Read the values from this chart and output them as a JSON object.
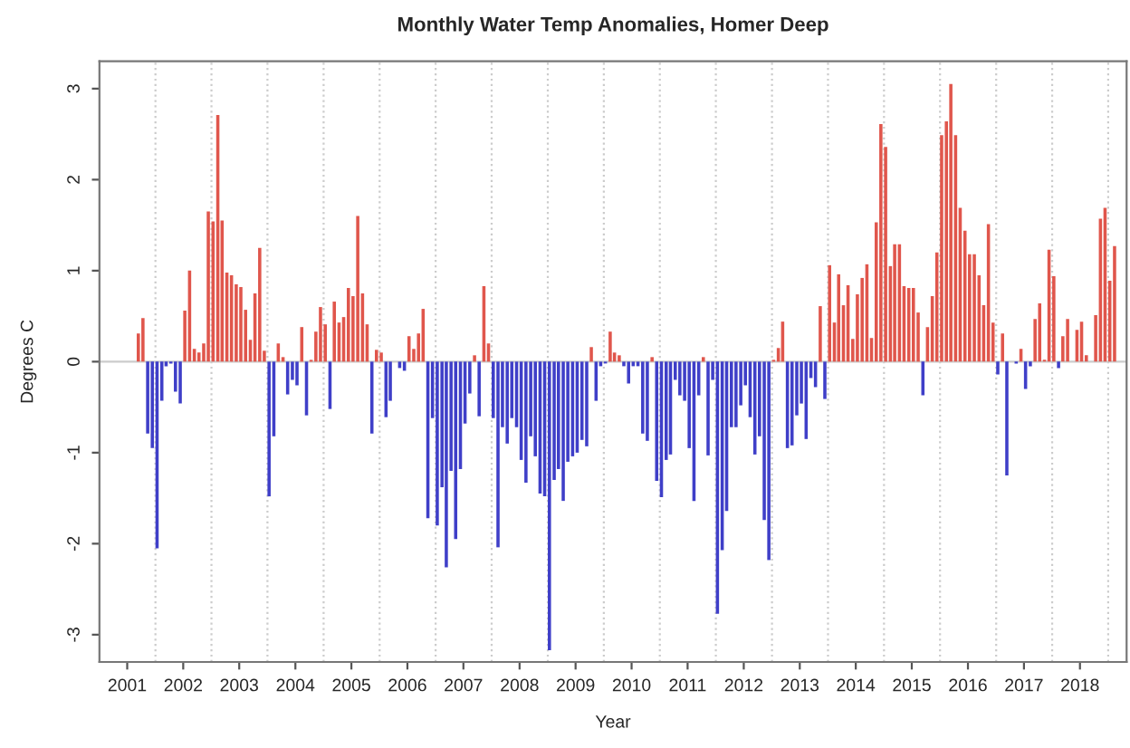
{
  "chart_data": {
    "type": "bar",
    "title": "Monthly Water Temp Anomalies, Homer Deep",
    "xlabel": "Year",
    "ylabel": "Degrees C",
    "x": [
      "2001-09",
      "2001-10",
      "2001-11",
      "2001-12",
      "2002-01",
      "2002-02",
      "2002-03",
      "2002-04",
      "2002-05",
      "2002-06",
      "2002-07",
      "2002-08",
      "2002-09",
      "2002-10",
      "2002-11",
      "2002-12",
      "2003-01",
      "2003-02",
      "2003-03",
      "2003-04",
      "2003-05",
      "2003-06",
      "2003-07",
      "2003-08",
      "2003-09",
      "2003-10",
      "2003-11",
      "2003-12",
      "2004-01",
      "2004-02",
      "2004-03",
      "2004-04",
      "2004-05",
      "2004-06",
      "2004-07",
      "2004-08",
      "2004-09",
      "2004-10",
      "2004-11",
      "2004-12",
      "2005-01",
      "2005-02",
      "2005-03",
      "2005-04",
      "2005-05",
      "2005-06",
      "2005-07",
      "2005-08",
      "2005-09",
      "2005-10",
      "2005-11",
      "2005-12",
      "2006-01",
      "2006-02",
      "2006-03",
      "2006-04",
      "2006-05",
      "2006-06",
      "2006-07",
      "2006-08",
      "2006-09",
      "2006-10",
      "2006-11",
      "2006-12",
      "2007-01",
      "2007-02",
      "2007-03",
      "2007-04",
      "2007-05",
      "2007-06",
      "2007-07",
      "2007-08",
      "2007-09",
      "2007-10",
      "2007-11",
      "2007-12",
      "2008-01",
      "2008-02",
      "2008-03",
      "2008-04",
      "2008-05",
      "2008-06",
      "2008-07",
      "2008-08",
      "2008-09",
      "2008-10",
      "2008-11",
      "2008-12",
      "2009-01",
      "2009-02",
      "2009-03",
      "2009-04",
      "2009-05",
      "2009-06",
      "2009-07",
      "2009-08",
      "2009-09",
      "2009-10",
      "2009-11",
      "2009-12",
      "2010-01",
      "2010-02",
      "2010-03",
      "2010-04",
      "2010-05",
      "2010-06",
      "2010-07",
      "2010-08",
      "2010-09",
      "2010-10",
      "2010-11",
      "2010-12",
      "2011-01",
      "2011-02",
      "2011-03",
      "2011-04",
      "2011-05",
      "2011-06",
      "2011-07",
      "2011-08",
      "2011-09",
      "2011-10",
      "2011-11",
      "2011-12",
      "2012-01",
      "2012-02",
      "2012-03",
      "2012-04",
      "2012-05",
      "2012-06",
      "2012-07",
      "2012-08",
      "2012-09",
      "2012-10",
      "2012-11",
      "2012-12",
      "2013-01",
      "2013-02",
      "2013-03",
      "2013-04",
      "2013-05",
      "2013-06",
      "2013-07",
      "2013-08",
      "2013-09",
      "2013-10",
      "2013-11",
      "2013-12",
      "2014-01",
      "2014-02",
      "2014-03",
      "2014-04",
      "2014-05",
      "2014-06",
      "2014-07",
      "2014-08",
      "2014-09",
      "2014-10",
      "2014-11",
      "2014-12",
      "2015-01",
      "2015-02",
      "2015-03",
      "2015-04",
      "2015-05",
      "2015-06",
      "2015-07",
      "2015-08",
      "2015-09",
      "2015-10",
      "2015-11",
      "2015-12",
      "2016-01",
      "2016-02",
      "2016-03",
      "2016-04",
      "2016-05",
      "2016-06",
      "2016-07",
      "2016-08",
      "2016-09",
      "2016-10",
      "2016-11",
      "2016-12",
      "2017-01",
      "2017-02",
      "2017-03",
      "2017-04",
      "2017-05",
      "2017-06",
      "2017-07",
      "2017-08",
      "2017-09",
      "2017-10",
      "2017-11",
      "2017-12",
      "2018-01",
      "2018-02",
      "2018-03",
      "2018-04",
      "2018-05",
      "2018-06",
      "2018-07",
      "2018-08",
      "2018-09",
      "2018-10",
      "2018-11",
      "2018-12",
      "2019-01",
      "2019-02"
    ],
    "series": [
      {
        "color": "#e0564c",
        "values": [
          0.31,
          0.48,
          null,
          null,
          null,
          null,
          null,
          null,
          null,
          null,
          0.56,
          1.0,
          0.14,
          0.1,
          0.2,
          1.65,
          1.54,
          2.71,
          1.55,
          0.98,
          0.95,
          0.85,
          0.82,
          0.57,
          0.24,
          0.75,
          1.25,
          0.12,
          null,
          null,
          0.2,
          0.05,
          null,
          null,
          null,
          0.38,
          null,
          0.02,
          0.33,
          0.6,
          0.41,
          null,
          0.66,
          0.43,
          0.49,
          0.81,
          0.72,
          1.6,
          0.75,
          0.41,
          null,
          0.13,
          0.1,
          null,
          null,
          0,
          null,
          null,
          0.28,
          0.14,
          0.31,
          0.58,
          null,
          null,
          null,
          null,
          null,
          null,
          null,
          null,
          null,
          null,
          0.07,
          null,
          0.83,
          0.2,
          null,
          null,
          null,
          null,
          null,
          null,
          null,
          null,
          null,
          null,
          null,
          null,
          null,
          null,
          null,
          null,
          null,
          null,
          null,
          null,
          null,
          0.16,
          null,
          null,
          null,
          0.33,
          0.1,
          0.07,
          null,
          null,
          null,
          null,
          null,
          null,
          0.05,
          null,
          null,
          null,
          null,
          null,
          null,
          null,
          null,
          null,
          null,
          0.05,
          null,
          null,
          null,
          null,
          null,
          null,
          null,
          null,
          null,
          null,
          null,
          null,
          null,
          null,
          0.02,
          0.15,
          0.44,
          null,
          null,
          null,
          null,
          null,
          null,
          null,
          0.61,
          null,
          1.06,
          0.43,
          0.96,
          0.62,
          0.84,
          0.25,
          0.74,
          0.92,
          1.07,
          0.26,
          1.53,
          2.61,
          2.36,
          1.05,
          1.29,
          1.29,
          0.83,
          0.81,
          0.81,
          0.54,
          null,
          0.38,
          0.72,
          1.2,
          2.49,
          2.64,
          3.05,
          2.49,
          1.69,
          1.44,
          1.18,
          1.18,
          0.95,
          0.62,
          1.51,
          0.43,
          null,
          0.31,
          null,
          0,
          null,
          0.14,
          null,
          null,
          0.47,
          0.64,
          0.02,
          1.23,
          0.94,
          null,
          0.28,
          0.47,
          0,
          0.35,
          0.44,
          0.07,
          0,
          0.51,
          1.57,
          1.69,
          0.89,
          1.27
        ]
      },
      {
        "color": "#3f3fc8",
        "values": [
          null,
          null,
          -0.79,
          -0.95,
          -2.05,
          -0.43,
          -0.05,
          -0.02,
          -0.33,
          -0.46,
          null,
          null,
          null,
          null,
          null,
          null,
          null,
          null,
          null,
          null,
          null,
          null,
          null,
          null,
          null,
          null,
          null,
          null,
          -1.48,
          -0.82,
          null,
          null,
          -0.36,
          -0.2,
          -0.26,
          null,
          -0.59,
          null,
          null,
          null,
          null,
          -0.52,
          null,
          null,
          null,
          null,
          null,
          null,
          null,
          null,
          -0.79,
          null,
          null,
          -0.61,
          -0.43,
          null,
          -0.07,
          -0.1,
          null,
          null,
          null,
          null,
          -1.72,
          -0.62,
          -1.8,
          -1.38,
          -2.26,
          -1.2,
          -1.95,
          -1.18,
          -0.68,
          -0.35,
          null,
          -0.6,
          null,
          null,
          -0.62,
          -2.04,
          -0.72,
          -0.9,
          -0.62,
          -0.72,
          -1.08,
          -1.33,
          -0.82,
          -1.04,
          -1.45,
          -1.48,
          -3.17,
          -1.3,
          -1.18,
          -1.53,
          -1.1,
          -1.04,
          -1.0,
          -0.86,
          -0.93,
          null,
          -0.43,
          -0.05,
          -0.02,
          null,
          null,
          null,
          -0.05,
          -0.24,
          -0.05,
          -0.05,
          -0.79,
          -0.87,
          null,
          -1.31,
          -1.49,
          -1.08,
          -1.02,
          -0.2,
          -0.37,
          -0.43,
          -0.95,
          -1.53,
          -0.37,
          null,
          -1.03,
          -0.2,
          -2.77,
          -2.07,
          -1.64,
          -0.72,
          -0.72,
          -0.48,
          -0.26,
          -0.61,
          -1.02,
          -0.82,
          -1.74,
          -2.18,
          null,
          null,
          null,
          -0.95,
          -0.92,
          -0.59,
          -0.46,
          -0.85,
          -0.18,
          -0.28,
          null,
          -0.41,
          null,
          null,
          null,
          null,
          null,
          null,
          null,
          null,
          null,
          null,
          null,
          null,
          null,
          null,
          null,
          null,
          null,
          null,
          null,
          null,
          -0.37,
          null,
          null,
          null,
          null,
          null,
          null,
          null,
          null,
          null,
          null,
          null,
          null,
          null,
          null,
          null,
          -0.14,
          null,
          -1.25,
          null,
          -0.02,
          null,
          -0.3,
          -0.05,
          null,
          null,
          null,
          null,
          null,
          -0.07,
          null,
          null,
          null,
          null,
          null,
          null,
          null,
          null,
          null,
          null,
          null,
          null
        ]
      }
    ],
    "xlim": [
      "2001-01",
      "2019-05"
    ],
    "xticks": [
      {
        "value": "2001-07",
        "label": "2001"
      },
      {
        "value": "2002-07",
        "label": "2002"
      },
      {
        "value": "2003-07",
        "label": "2003"
      },
      {
        "value": "2004-07",
        "label": "2004"
      },
      {
        "value": "2005-07",
        "label": "2005"
      },
      {
        "value": "2006-07",
        "label": "2006"
      },
      {
        "value": "2007-07",
        "label": "2007"
      },
      {
        "value": "2008-07",
        "label": "2008"
      },
      {
        "value": "2009-07",
        "label": "2009"
      },
      {
        "value": "2010-07",
        "label": "2010"
      },
      {
        "value": "2011-07",
        "label": "2011"
      },
      {
        "value": "2012-07",
        "label": "2012"
      },
      {
        "value": "2013-07",
        "label": "2013"
      },
      {
        "value": "2014-07",
        "label": "2014"
      },
      {
        "value": "2015-07",
        "label": "2015"
      },
      {
        "value": "2016-07",
        "label": "2016"
      },
      {
        "value": "2017-07",
        "label": "2017"
      },
      {
        "value": "2018-07",
        "label": "2018"
      }
    ],
    "ylim": [
      -3.3,
      3.3
    ],
    "yticks": [
      -3,
      -2,
      -1,
      0,
      1,
      2,
      3
    ],
    "ref_lines": [
      {
        "axis": "y",
        "value": 0,
        "color": "#cccccc",
        "line_style": "solid"
      },
      {
        "axis": "x",
        "value": "2002-01",
        "color": "#cccccc",
        "line_style": "dotted"
      },
      {
        "axis": "x",
        "value": "2003-01",
        "color": "#cccccc",
        "line_style": "dotted"
      },
      {
        "axis": "x",
        "value": "2004-01",
        "color": "#cccccc",
        "line_style": "dotted"
      },
      {
        "axis": "x",
        "value": "2005-01",
        "color": "#cccccc",
        "line_style": "dotted"
      },
      {
        "axis": "x",
        "value": "2006-01",
        "color": "#cccccc",
        "line_style": "dotted"
      },
      {
        "axis": "x",
        "value": "2007-01",
        "color": "#cccccc",
        "line_style": "dotted"
      },
      {
        "axis": "x",
        "value": "2008-01",
        "color": "#cccccc",
        "line_style": "dotted"
      },
      {
        "axis": "x",
        "value": "2009-01",
        "color": "#cccccc",
        "line_style": "dotted"
      },
      {
        "axis": "x",
        "value": "2010-01",
        "color": "#cccccc",
        "line_style": "dotted"
      },
      {
        "axis": "x",
        "value": "2011-01",
        "color": "#cccccc",
        "line_style": "dotted"
      },
      {
        "axis": "x",
        "value": "2012-01",
        "color": "#cccccc",
        "line_style": "dotted"
      },
      {
        "axis": "x",
        "value": "2013-01",
        "color": "#cccccc",
        "line_style": "dotted"
      },
      {
        "axis": "x",
        "value": "2014-01",
        "color": "#cccccc",
        "line_style": "dotted"
      },
      {
        "axis": "x",
        "value": "2015-01",
        "color": "#cccccc",
        "line_style": "dotted"
      },
      {
        "axis": "x",
        "value": "2016-01",
        "color": "#cccccc",
        "line_style": "dotted"
      },
      {
        "axis": "x",
        "value": "2017-01",
        "color": "#cccccc",
        "line_style": "dotted"
      },
      {
        "axis": "x",
        "value": "2018-01",
        "color": "#cccccc",
        "line_style": "dotted"
      },
      {
        "axis": "x",
        "value": "2019-01",
        "color": "#cccccc",
        "line_style": "dotted"
      }
    ],
    "grid": false
  }
}
